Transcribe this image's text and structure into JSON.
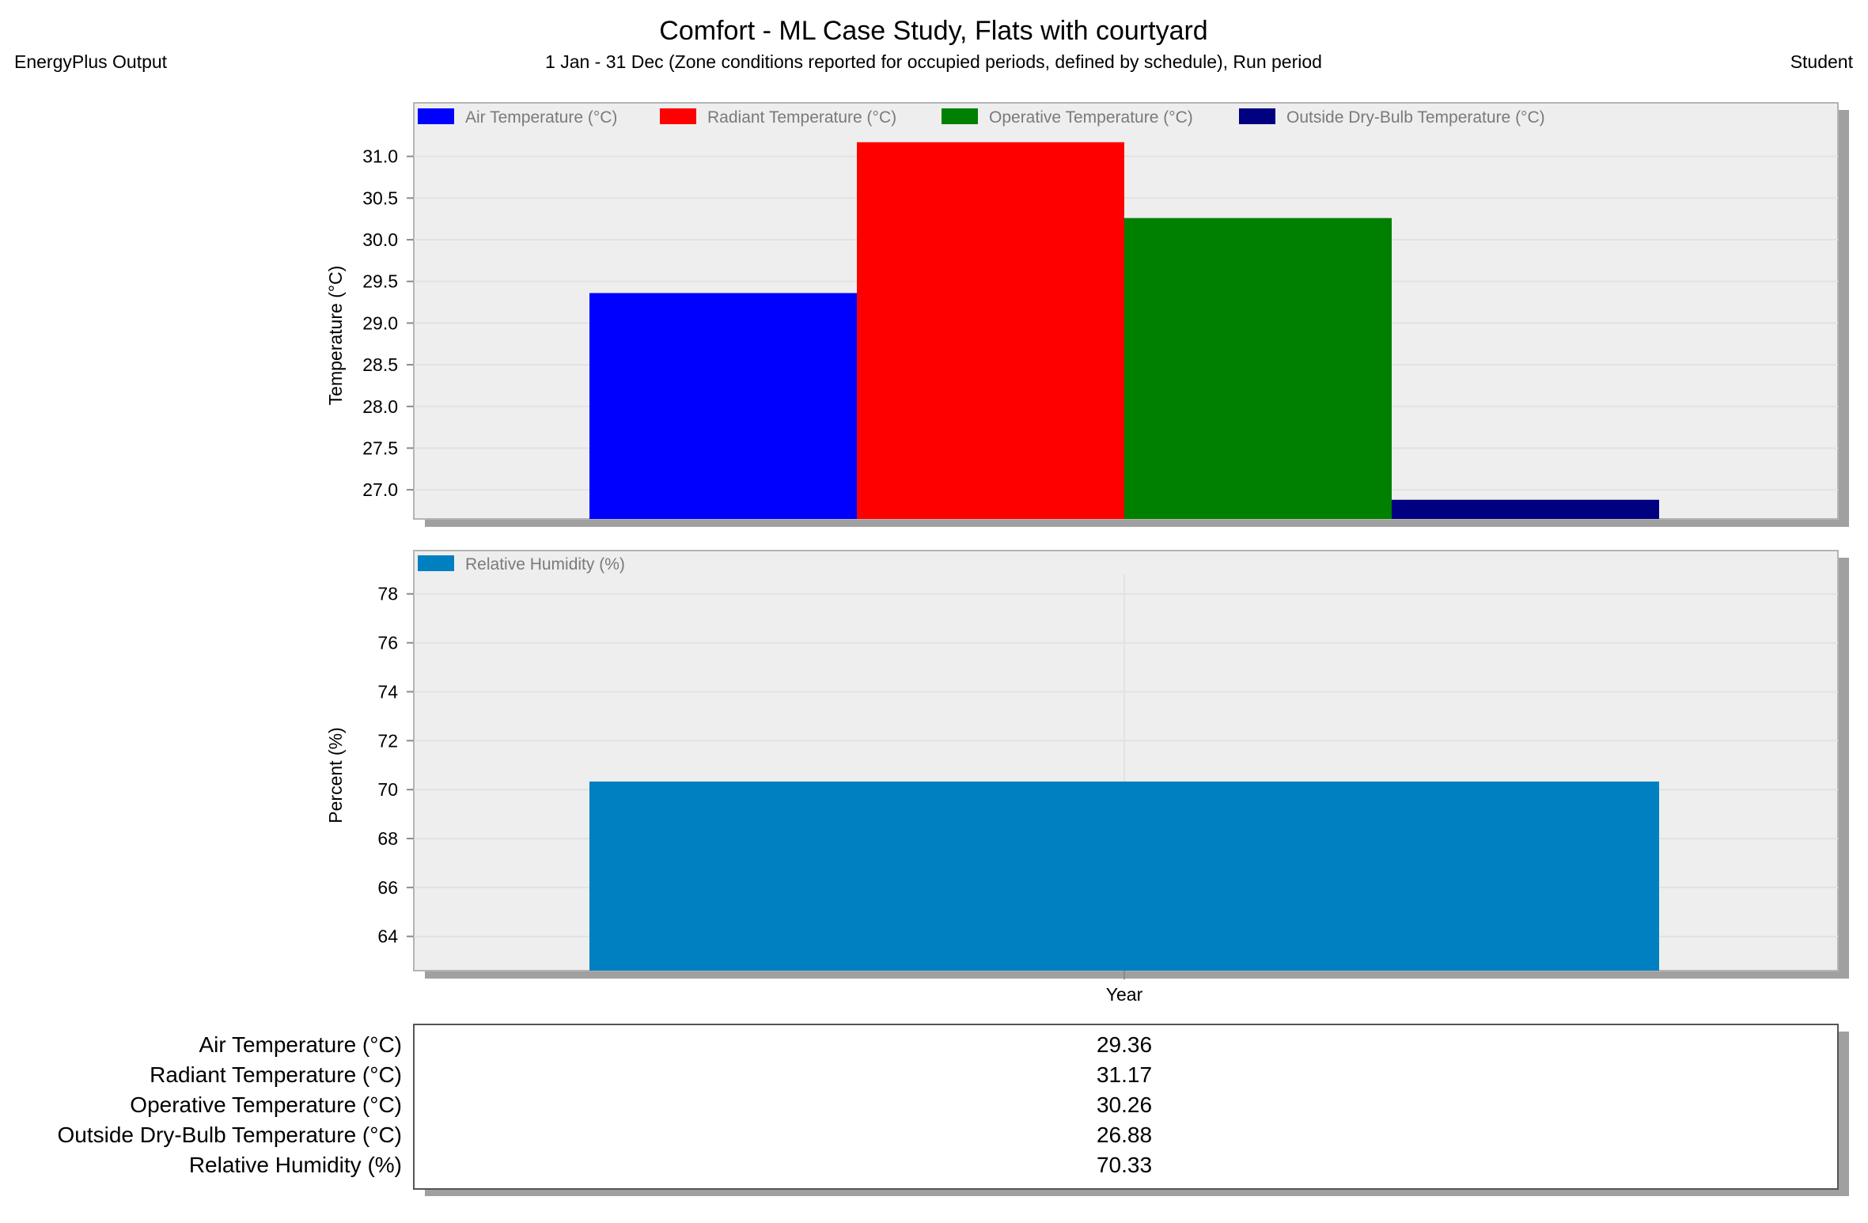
{
  "header": {
    "title": "Comfort - ML Case Study, Flats with courtyard",
    "left_label": "EnergyPlus Output",
    "subtitle": "1 Jan - 31 Dec (Zone conditions reported for occupied periods, defined by schedule), Run period",
    "right_label": "Student"
  },
  "chart_data": [
    {
      "type": "bar",
      "categories": [
        "Year"
      ],
      "ylabel": "Temperature (°C)",
      "ylim": [
        26.65,
        31.5
      ],
      "yticks": [
        "27.0",
        "27.5",
        "28.0",
        "28.5",
        "29.0",
        "29.5",
        "30.0",
        "30.5",
        "31.0"
      ],
      "grid": true,
      "legend_position": "top",
      "series": [
        {
          "name": "Air Temperature (°C)",
          "values": [
            29.36
          ],
          "color": "#0000ff"
        },
        {
          "name": "Radiant Temperature (°C)",
          "values": [
            31.17
          ],
          "color": "#ff0000"
        },
        {
          "name": "Operative Temperature (°C)",
          "values": [
            30.26
          ],
          "color": "#008000"
        },
        {
          "name": "Outside Dry-Bulb Temperature (°C)",
          "values": [
            26.88
          ],
          "color": "#000080"
        }
      ]
    },
    {
      "type": "bar",
      "categories": [
        "Year"
      ],
      "xlabel": "Year",
      "ylabel": "Percent (%)",
      "ylim": [
        62.6,
        78.8
      ],
      "yticks": [
        "64",
        "66",
        "68",
        "70",
        "72",
        "74",
        "76",
        "78"
      ],
      "grid": true,
      "legend_position": "top",
      "series": [
        {
          "name": "Relative Humidity (%)",
          "values": [
            70.33
          ],
          "color": "#0080c0"
        }
      ]
    }
  ],
  "table": {
    "rows": [
      {
        "label": "Air Temperature (°C)",
        "value": "29.36"
      },
      {
        "label": "Radiant Temperature (°C)",
        "value": "31.17"
      },
      {
        "label": "Operative Temperature (°C)",
        "value": "30.26"
      },
      {
        "label": "Outside Dry-Bulb Temperature (°C)",
        "value": "26.88"
      },
      {
        "label": "Relative Humidity (%)",
        "value": "70.33"
      }
    ]
  }
}
